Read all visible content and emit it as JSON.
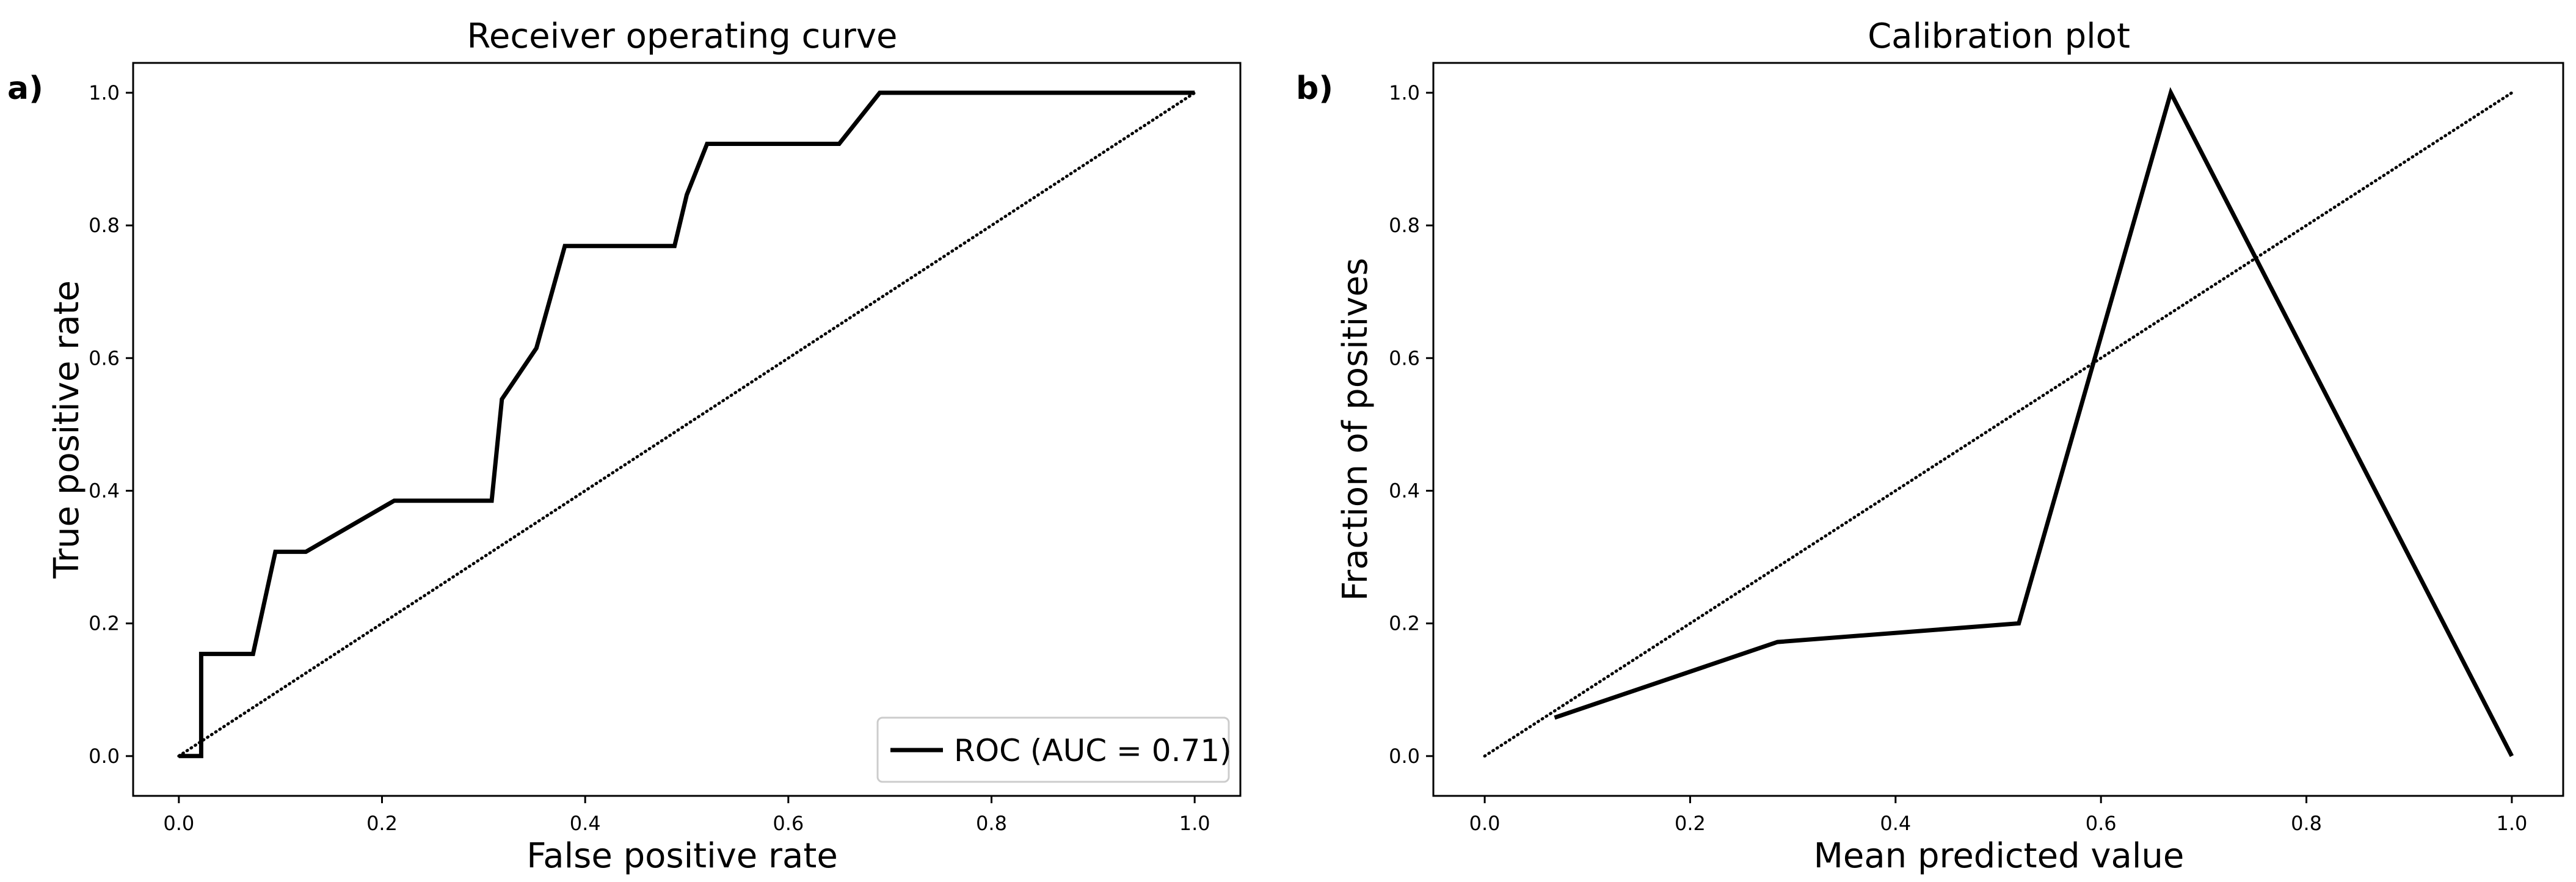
{
  "colors": {
    "line": "#000000",
    "frame": "#000000",
    "legend_border": "#cccccc",
    "background": "#ffffff"
  },
  "chart_data": [
    {
      "type": "line",
      "panel_label": "a)",
      "title": "Receiver operating curve",
      "xlabel": "False positive rate",
      "ylabel": "True positive rate",
      "xlim": [
        -0.045,
        1.045
      ],
      "ylim": [
        -0.06,
        1.045
      ],
      "xticks": [
        0.0,
        0.2,
        0.4,
        0.6,
        0.8,
        1.0
      ],
      "xtick_labels": [
        "0.0",
        "0.2",
        "0.4",
        "0.6",
        "0.8",
        "1.0"
      ],
      "yticks": [
        0.0,
        0.2,
        0.4,
        0.6,
        0.8,
        1.0
      ],
      "ytick_labels": [
        "0.0",
        "0.2",
        "0.4",
        "0.6",
        "0.8",
        "1.0"
      ],
      "grid": false,
      "legend": {
        "position": "lower-right",
        "entries": [
          "ROC (AUC = 0.71)"
        ]
      },
      "series": [
        {
          "name": "ROC (AUC = 0.71)",
          "style": "solid",
          "x": [
            0.0,
            0.022,
            0.022,
            0.073,
            0.095,
            0.125,
            0.212,
            0.308,
            0.318,
            0.352,
            0.38,
            0.488,
            0.5,
            0.52,
            0.65,
            0.69,
            1.0
          ],
          "y": [
            0.0,
            0.0,
            0.154,
            0.154,
            0.308,
            0.308,
            0.385,
            0.385,
            0.538,
            0.615,
            0.769,
            0.769,
            0.846,
            0.923,
            0.923,
            1.0,
            1.0
          ]
        },
        {
          "style": "dotted",
          "x": [
            0.0,
            1.0
          ],
          "y": [
            0.0,
            1.0
          ]
        }
      ]
    },
    {
      "type": "line",
      "panel_label": "b)",
      "title": "Calibration plot",
      "xlabel": "Mean predicted value",
      "ylabel": "Fraction of positives",
      "xlim": [
        -0.05,
        1.05
      ],
      "ylim": [
        -0.06,
        1.045
      ],
      "xticks": [
        0.0,
        0.2,
        0.4,
        0.6,
        0.8,
        1.0
      ],
      "xtick_labels": [
        "0.0",
        "0.2",
        "0.4",
        "0.6",
        "0.8",
        "1.0"
      ],
      "yticks": [
        0.0,
        0.2,
        0.4,
        0.6,
        0.8,
        1.0
      ],
      "ytick_labels": [
        "0.0",
        "0.2",
        "0.4",
        "0.6",
        "0.8",
        "1.0"
      ],
      "grid": false,
      "series": [
        {
          "style": "solid",
          "x": [
            0.068,
            0.285,
            0.52,
            0.668,
            1.0
          ],
          "y": [
            0.058,
            0.172,
            0.2,
            1.0,
            0.0
          ]
        },
        {
          "style": "dotted",
          "x": [
            0.0,
            1.0
          ],
          "y": [
            0.0,
            1.0
          ]
        }
      ]
    }
  ]
}
